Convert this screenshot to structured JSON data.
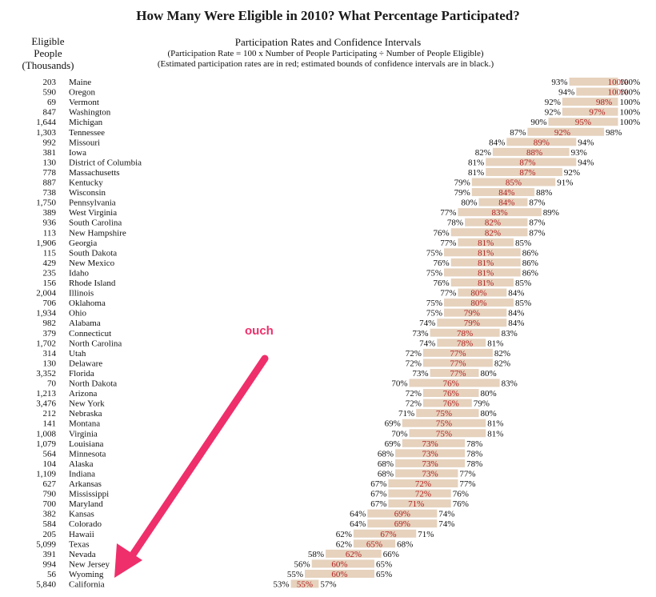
{
  "title": "How Many Were Eligible in 2010? What Percentage Participated?",
  "left_header": [
    "Eligible",
    "People",
    "(Thousands)"
  ],
  "chart_header": {
    "title": "Participation Rates and Confidence Intervals",
    "line1": "(Participation Rate = 100 x Number of People Participating ÷ Number of People Eligible)",
    "line2": "(Estimated participation rates are in red; estimated bounds of confidence intervals are in black.)"
  },
  "annotation": {
    "text": "ouch",
    "color": "#ee2f6b"
  },
  "colors": {
    "bar": "#e6d2bd",
    "rate_text": "#b22222",
    "bound_text": "#111111",
    "annotation": "#ee2f6b"
  },
  "chart_data": {
    "type": "bar",
    "description_units": "percent",
    "columns": [
      "eligible_thousands",
      "state",
      "lower",
      "rate",
      "upper"
    ],
    "rows": [
      [
        "203",
        "Maine",
        93,
        100,
        100
      ],
      [
        "590",
        "Oregon",
        94,
        100,
        100
      ],
      [
        "69",
        "Vermont",
        92,
        98,
        100
      ],
      [
        "847",
        "Washington",
        92,
        97,
        100
      ],
      [
        "1,644",
        "Michigan",
        90,
        95,
        100
      ],
      [
        "1,303",
        "Tennessee",
        87,
        92,
        98
      ],
      [
        "992",
        "Missouri",
        84,
        89,
        94
      ],
      [
        "381",
        "Iowa",
        82,
        88,
        93
      ],
      [
        "130",
        "District of Columbia",
        81,
        87,
        94
      ],
      [
        "778",
        "Massachusetts",
        81,
        87,
        92
      ],
      [
        "887",
        "Kentucky",
        79,
        85,
        91
      ],
      [
        "738",
        "Wisconsin",
        79,
        84,
        88
      ],
      [
        "1,750",
        "Pennsylvania",
        80,
        84,
        87
      ],
      [
        "389",
        "West Virginia",
        77,
        83,
        89
      ],
      [
        "936",
        "South Carolina",
        78,
        82,
        87
      ],
      [
        "113",
        "New Hampshire",
        76,
        82,
        87
      ],
      [
        "1,906",
        "Georgia",
        77,
        81,
        85
      ],
      [
        "115",
        "South Dakota",
        75,
        81,
        86
      ],
      [
        "429",
        "New Mexico",
        76,
        81,
        86
      ],
      [
        "235",
        "Idaho",
        75,
        81,
        86
      ],
      [
        "156",
        "Rhode Island",
        76,
        81,
        85
      ],
      [
        "2,004",
        "Illinois",
        77,
        80,
        84
      ],
      [
        "706",
        "Oklahoma",
        75,
        80,
        85
      ],
      [
        "1,934",
        "Ohio",
        75,
        79,
        84
      ],
      [
        "982",
        "Alabama",
        74,
        79,
        84
      ],
      [
        "379",
        "Connecticut",
        73,
        78,
        83
      ],
      [
        "1,702",
        "North Carolina",
        74,
        78,
        81
      ],
      [
        "314",
        "Utah",
        72,
        77,
        82
      ],
      [
        "130",
        "Delaware",
        72,
        77,
        82
      ],
      [
        "3,352",
        "Florida",
        73,
        77,
        80
      ],
      [
        "70",
        "North Dakota",
        70,
        76,
        83
      ],
      [
        "1,213",
        "Arizona",
        72,
        76,
        80
      ],
      [
        "3,476",
        "New York",
        72,
        76,
        79
      ],
      [
        "212",
        "Nebraska",
        71,
        75,
        80
      ],
      [
        "141",
        "Montana",
        69,
        75,
        81
      ],
      [
        "1,008",
        "Virginia",
        70,
        75,
        81
      ],
      [
        "1,079",
        "Louisiana",
        69,
        73,
        78
      ],
      [
        "564",
        "Minnesota",
        68,
        73,
        78
      ],
      [
        "104",
        "Alaska",
        68,
        73,
        78
      ],
      [
        "1,109",
        "Indiana",
        68,
        73,
        77
      ],
      [
        "627",
        "Arkansas",
        67,
        72,
        77
      ],
      [
        "790",
        "Mississippi",
        67,
        72,
        76
      ],
      [
        "700",
        "Maryland",
        67,
        71,
        76
      ],
      [
        "382",
        "Kansas",
        64,
        69,
        74
      ],
      [
        "584",
        "Colorado",
        64,
        69,
        74
      ],
      [
        "205",
        "Hawaii",
        62,
        67,
        71
      ],
      [
        "5,099",
        "Texas",
        62,
        65,
        68
      ],
      [
        "391",
        "Nevada",
        58,
        62,
        66
      ],
      [
        "994",
        "New Jersey",
        56,
        60,
        65
      ],
      [
        "56",
        "Wyoming",
        55,
        60,
        65
      ],
      [
        "5,840",
        "California",
        53,
        55,
        57
      ]
    ]
  }
}
